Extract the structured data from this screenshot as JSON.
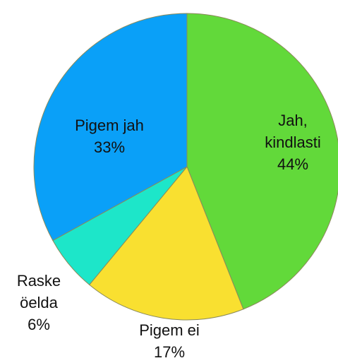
{
  "chart_data": {
    "type": "pie",
    "categories": [
      "Jah, kindlasti",
      "Pigem ei",
      "Raske öelda",
      "Pigem jah"
    ],
    "values": [
      44,
      17,
      6,
      33
    ],
    "value_labels": [
      "44%",
      "17%",
      "6%",
      "33%"
    ],
    "colors": [
      "#62d93a",
      "#f9e030",
      "#1de6c9",
      "#0aa0f8"
    ]
  }
}
